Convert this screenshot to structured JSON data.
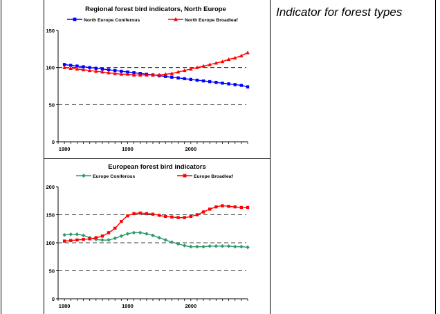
{
  "side_caption": "Indicator for forest types",
  "chart_data": [
    {
      "type": "line",
      "title": "Regional forest bird indicators, North Europe",
      "xlabel": "",
      "ylabel": "",
      "xlim": [
        1979,
        2009
      ],
      "ylim": [
        0,
        150
      ],
      "yticks": [
        0,
        50,
        100,
        150
      ],
      "xticks": [
        1980,
        1990,
        2000
      ],
      "dashed_gridlines": [
        50,
        100
      ],
      "legend_position": "top",
      "series": [
        {
          "name": "North Europe Coniferous",
          "color": "#0000ff",
          "marker": "square",
          "x": [
            1980,
            1981,
            1982,
            1983,
            1984,
            1985,
            1986,
            1987,
            1988,
            1989,
            1990,
            1991,
            1992,
            1993,
            1994,
            1995,
            1996,
            1997,
            1998,
            1999,
            2000,
            2001,
            2002,
            2003,
            2004,
            2005,
            2006,
            2007,
            2008,
            2009
          ],
          "values": [
            104,
            103,
            102,
            101,
            100,
            99,
            98,
            97,
            96,
            95,
            94,
            93,
            92,
            91,
            90,
            89,
            88,
            87,
            86,
            85,
            84,
            83,
            82,
            81,
            80,
            79,
            78,
            77,
            76,
            74
          ]
        },
        {
          "name": "North Europe Broadleaf",
          "color": "#ff0000",
          "marker": "triangle",
          "x": [
            1980,
            1981,
            1982,
            1983,
            1984,
            1985,
            1986,
            1987,
            1988,
            1989,
            1990,
            1991,
            1992,
            1993,
            1994,
            1995,
            1996,
            1997,
            1998,
            1999,
            2000,
            2001,
            2002,
            2003,
            2004,
            2005,
            2006,
            2007,
            2008,
            2009
          ],
          "values": [
            100,
            99,
            98,
            97,
            96,
            95,
            94,
            93,
            92,
            91,
            91,
            90,
            90,
            90,
            90,
            90,
            91,
            92,
            94,
            96,
            98,
            100,
            102,
            104,
            106,
            108,
            111,
            113,
            116,
            120
          ]
        }
      ]
    },
    {
      "type": "line",
      "title": "European forest bird indicators",
      "xlabel": "",
      "ylabel": "",
      "xlim": [
        1979,
        2009
      ],
      "ylim": [
        0,
        200
      ],
      "yticks": [
        0,
        50,
        100,
        150,
        200
      ],
      "xticks": [
        1980,
        1990,
        2000
      ],
      "dashed_gridlines": [
        50,
        100,
        150
      ],
      "legend_position": "top",
      "series": [
        {
          "name": "Europe Coniferous",
          "color": "#2e9a6b",
          "marker": "diamond",
          "x": [
            1980,
            1981,
            1982,
            1983,
            1984,
            1985,
            1986,
            1987,
            1988,
            1989,
            1990,
            1991,
            1992,
            1993,
            1994,
            1995,
            1996,
            1997,
            1998,
            1999,
            2000,
            2001,
            2002,
            2003,
            2004,
            2005,
            2006,
            2007,
            2008,
            2009
          ],
          "values": [
            114,
            115,
            115,
            113,
            109,
            106,
            105,
            105,
            108,
            112,
            116,
            118,
            118,
            116,
            113,
            109,
            105,
            101,
            98,
            95,
            93,
            93,
            93,
            94,
            94,
            94,
            94,
            93,
            93,
            92
          ]
        },
        {
          "name": "Europe Broadleaf",
          "color": "#ff0000",
          "marker": "square",
          "x": [
            1980,
            1981,
            1982,
            1983,
            1984,
            1985,
            1986,
            1987,
            1988,
            1989,
            1990,
            1991,
            1992,
            1993,
            1994,
            1995,
            1996,
            1997,
            1998,
            1999,
            2000,
            2001,
            2002,
            2003,
            2004,
            2005,
            2006,
            2007,
            2008,
            2009
          ],
          "values": [
            103,
            104,
            105,
            106,
            107,
            109,
            112,
            118,
            126,
            138,
            148,
            152,
            153,
            152,
            151,
            149,
            147,
            146,
            145,
            145,
            147,
            150,
            155,
            160,
            164,
            166,
            165,
            164,
            163,
            163
          ]
        }
      ]
    }
  ]
}
